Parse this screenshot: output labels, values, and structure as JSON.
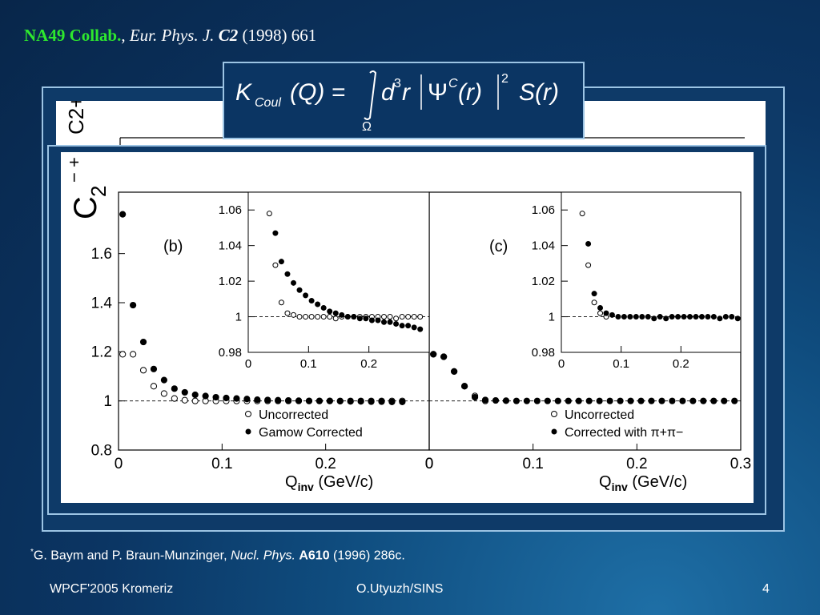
{
  "header": {
    "collab": "NA49 Collab.",
    "sep": ",",
    "journal": "Eur. Phys. J.",
    "volume": "C2",
    "year_page": "(1998) 661"
  },
  "formula": {
    "lhs": "K",
    "lhs_sub": "Coul",
    "arg": "(Q) =",
    "integrand": "d",
    "cube": "3",
    "r": "r",
    "psi": "Ψ",
    "psi_sup": "C",
    "psi_arg": "(r)",
    "sq": "2",
    "s": "S(r)",
    "domain": "Ω"
  },
  "chart_data": [
    {
      "type": "scatter",
      "panel_label": "(b)",
      "ylabel": "C2+- ",
      "xlabel": "Qinv (GeV/c)",
      "xlim": [
        0,
        0.3
      ],
      "ylim": [
        0.8,
        1.85
      ],
      "x_ticks": [
        "0",
        "0.1",
        "0.2",
        "0"
      ],
      "y_ticks": [
        "0.8",
        "1",
        "1.2",
        "1.4",
        "1.6"
      ],
      "reference_line": 1,
      "legend": [
        "Uncorrected",
        "Gamow Corrected"
      ],
      "series": [
        {
          "name": "Uncorrected",
          "marker": "open-circle",
          "x": [
            0.004,
            0.014,
            0.024,
            0.034,
            0.044,
            0.054,
            0.064,
            0.074,
            0.084,
            0.094,
            0.104,
            0.114,
            0.124,
            0.134,
            0.144,
            0.154,
            0.164,
            0.174,
            0.184,
            0.194,
            0.204,
            0.214,
            0.224,
            0.234,
            0.244,
            0.254,
            0.264,
            0.274
          ],
          "y": [
            1.19,
            1.19,
            1.125,
            1.06,
            1.03,
            1.01,
            1.003,
            1.0,
            1.0,
            1.0,
            1.0,
            1.0,
            1.0,
            1.0,
            1.0,
            1.0,
            1.0,
            1.0,
            1.0,
            1.0,
            1.0,
            1.0,
            1.0,
            1.0,
            1.0,
            1.0,
            1.0,
            1.0
          ]
        },
        {
          "name": "Gamow Corrected",
          "marker": "filled-circle",
          "x": [
            0.004,
            0.014,
            0.024,
            0.034,
            0.044,
            0.054,
            0.064,
            0.074,
            0.084,
            0.094,
            0.104,
            0.114,
            0.124,
            0.134,
            0.144,
            0.154,
            0.164,
            0.174,
            0.184,
            0.194,
            0.204,
            0.214,
            0.224,
            0.234,
            0.244,
            0.254,
            0.264,
            0.274
          ],
          "y": [
            1.76,
            1.39,
            1.24,
            1.13,
            1.085,
            1.05,
            1.035,
            1.025,
            1.02,
            1.015,
            1.012,
            1.01,
            1.008,
            1.005,
            1.004,
            1.003,
            1.002,
            1.001,
            1.0,
            1.0,
            1.0,
            0.999,
            0.998,
            0.998,
            0.997,
            0.997,
            0.996,
            0.996
          ]
        }
      ],
      "inset": {
        "xlim": [
          0,
          0.3
        ],
        "ylim": [
          0.98,
          1.07
        ],
        "x_ticks": [
          "0",
          "0.1",
          "0.2"
        ],
        "y_ticks": [
          "0.98",
          "1",
          "1.02",
          "1.04",
          "1.06"
        ],
        "series": [
          {
            "name": "Uncorrected",
            "marker": "open-circle",
            "x": [
              0.035,
              0.045,
              0.055,
              0.065,
              0.075,
              0.085,
              0.095,
              0.105,
              0.115,
              0.125,
              0.135,
              0.145,
              0.155,
              0.165,
              0.175,
              0.185,
              0.195,
              0.205,
              0.215,
              0.225,
              0.235,
              0.245,
              0.255,
              0.265,
              0.275,
              0.285
            ],
            "y": [
              1.058,
              1.029,
              1.008,
              1.002,
              1.001,
              1.0,
              1.0,
              1.0,
              1.0,
              1.0,
              1.0,
              0.999,
              1.0,
              1.0,
              1.0,
              1.0,
              1.0,
              1.0,
              1.0,
              1.0,
              1.0,
              0.999,
              1.0,
              1.0,
              1.0,
              1.0
            ]
          },
          {
            "name": "Gamow Corrected",
            "marker": "filled-circle",
            "x": [
              0.045,
              0.055,
              0.065,
              0.075,
              0.085,
              0.095,
              0.105,
              0.115,
              0.125,
              0.135,
              0.145,
              0.155,
              0.165,
              0.175,
              0.185,
              0.195,
              0.205,
              0.215,
              0.225,
              0.235,
              0.245,
              0.255,
              0.265,
              0.275,
              0.285
            ],
            "y": [
              1.047,
              1.031,
              1.024,
              1.019,
              1.015,
              1.012,
              1.009,
              1.007,
              1.005,
              1.003,
              1.002,
              1.001,
              1.0,
              1.0,
              0.999,
              0.999,
              0.998,
              0.998,
              0.997,
              0.997,
              0.996,
              0.995,
              0.995,
              0.994,
              0.993
            ]
          }
        ]
      }
    },
    {
      "type": "scatter",
      "panel_label": "(c)",
      "xlabel": "Qinv (GeV/c)",
      "xlim": [
        0,
        0.3
      ],
      "ylim": [
        0.8,
        1.85
      ],
      "x_ticks": [
        "0",
        "0.1",
        "0.2",
        "0.3"
      ],
      "reference_line": 1,
      "legend": [
        "Uncorrected",
        "Corrected with π+π−"
      ],
      "series": [
        {
          "name": "Uncorrected",
          "marker": "open-circle",
          "x": [
            0.004,
            0.014,
            0.024,
            0.034,
            0.044,
            0.054
          ],
          "y": [
            1.19,
            1.18,
            1.12,
            1.06,
            1.02,
            1.0
          ]
        },
        {
          "name": "Corrected with π+π−",
          "marker": "filled-circle",
          "x": [
            0.004,
            0.014,
            0.024,
            0.034,
            0.044,
            0.054,
            0.064,
            0.074,
            0.084,
            0.094,
            0.104,
            0.114,
            0.124,
            0.134,
            0.144,
            0.154,
            0.164,
            0.174,
            0.184,
            0.194,
            0.204,
            0.214,
            0.224,
            0.234,
            0.244,
            0.254,
            0.264,
            0.274,
            0.284,
            0.294
          ],
          "y": [
            1.19,
            1.18,
            1.12,
            1.06,
            1.015,
            1.004,
            1.002,
            1.001,
            1.0,
            1.0,
            1.0,
            1.0,
            1.0,
            1.0,
            1.0,
            1.0,
            1.0,
            1.0,
            1.0,
            1.0,
            1.0,
            1.0,
            1.0,
            1.0,
            1.0,
            1.0,
            1.0,
            1.0,
            1.0,
            1.0
          ]
        }
      ],
      "inset": {
        "xlim": [
          0,
          0.3
        ],
        "ylim": [
          0.98,
          1.07
        ],
        "x_ticks": [
          "0",
          "0.1",
          "0.2"
        ],
        "y_ticks": [
          "0.98",
          "1",
          "1.02",
          "1.04",
          "1.06"
        ],
        "series": [
          {
            "name": "Uncorrected",
            "marker": "open-circle",
            "x": [
              0.035,
              0.045,
              0.055,
              0.065,
              0.075
            ],
            "y": [
              1.058,
              1.029,
              1.008,
              1.002,
              1.0
            ]
          },
          {
            "name": "Corrected with π+π−",
            "marker": "filled-circle",
            "x": [
              0.045,
              0.055,
              0.065,
              0.075,
              0.085,
              0.095,
              0.105,
              0.115,
              0.125,
              0.135,
              0.145,
              0.155,
              0.165,
              0.175,
              0.185,
              0.195,
              0.205,
              0.215,
              0.225,
              0.235,
              0.245,
              0.255,
              0.265,
              0.275,
              0.285,
              0.295
            ],
            "y": [
              1.041,
              1.013,
              1.005,
              1.002,
              1.001,
              1.0,
              1.0,
              1.0,
              1.0,
              1.0,
              1.0,
              0.999,
              1.0,
              0.999,
              1.0,
              1.0,
              1.0,
              1.0,
              1.0,
              1.0,
              1.0,
              1.0,
              0.999,
              1.0,
              1.0,
              0.999
            ]
          }
        ]
      }
    }
  ],
  "footnote": {
    "mark": "*",
    "authors": "G. Baym and P. Braun-Munzinger, ",
    "journal": "Nucl. Phys.",
    "volume": "A610",
    "rest": " (1996) 286c."
  },
  "footer": {
    "left": "WPCF'2005 Kromeriz",
    "center": "O.Utyuzh/SINS",
    "page": "4"
  },
  "colors": {
    "background": "#0b3563",
    "frame_border": "#9cc4e4",
    "header_highlight": "#2ee82e"
  }
}
